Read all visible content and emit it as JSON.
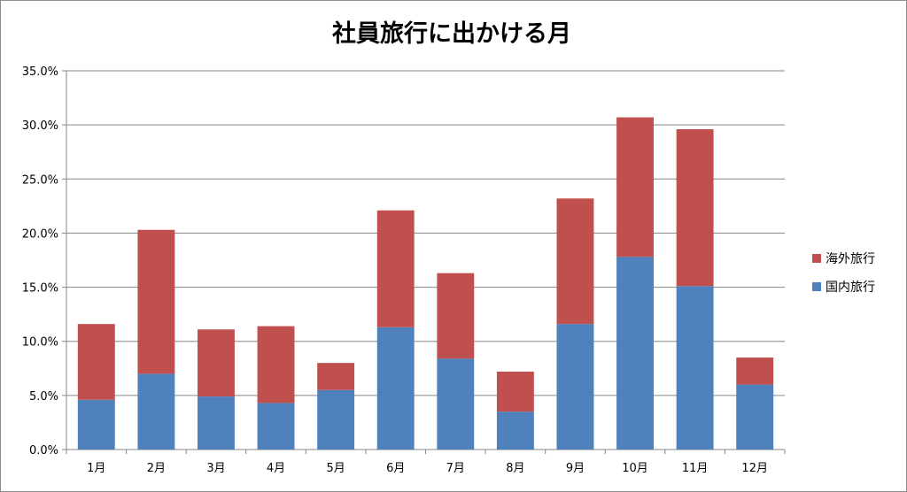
{
  "chart_data": {
    "type": "bar",
    "stacked": true,
    "title": "社員旅行に出かける月",
    "xlabel": "",
    "ylabel": "",
    "categories": [
      "1月",
      "2月",
      "3月",
      "4月",
      "5月",
      "6月",
      "7月",
      "8月",
      "9月",
      "10月",
      "11月",
      "12月"
    ],
    "series": [
      {
        "name": "国内旅行",
        "color": "#4f81bd",
        "values": [
          4.6,
          7.0,
          4.9,
          4.3,
          5.5,
          11.3,
          8.4,
          3.5,
          11.6,
          17.8,
          15.1,
          6.0
        ]
      },
      {
        "name": "海外旅行",
        "color": "#c0504d",
        "values": [
          7.0,
          13.3,
          6.2,
          7.1,
          2.5,
          10.8,
          7.9,
          3.7,
          11.6,
          12.9,
          14.5,
          2.5
        ]
      }
    ],
    "ylim": [
      0,
      35
    ],
    "yticks": [
      "0.0%",
      "5.0%",
      "10.0%",
      "15.0%",
      "20.0%",
      "25.0%",
      "30.0%",
      "35.0%"
    ],
    "grid": true,
    "legend_position": "right",
    "legend_order": [
      "海外旅行",
      "国内旅行"
    ]
  }
}
